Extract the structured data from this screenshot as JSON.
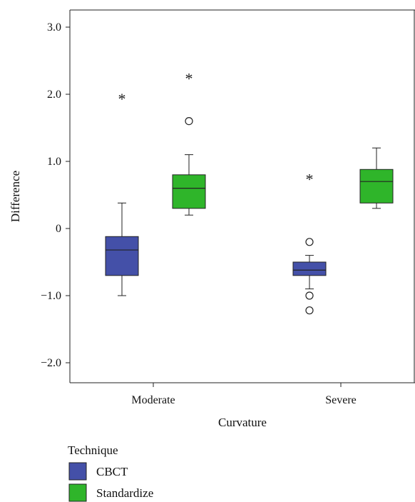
{
  "chart_data": {
    "type": "box",
    "xlabel": "Curvature",
    "ylabel": "Difference",
    "categories": [
      "Moderate",
      "Severe"
    ],
    "ylim": [
      -2.5,
      3.3
    ],
    "yticks": [
      {
        "value": 3.0,
        "label": "3.0"
      },
      {
        "value": 2.0,
        "label": "2.0"
      },
      {
        "value": 1.0,
        "label": "1.0"
      },
      {
        "value": 0,
        "label": "0"
      },
      {
        "value": -1.0,
        "label": "−1.0"
      },
      {
        "value": -2.0,
        "label": "−2.0"
      }
    ],
    "grid": false,
    "legend": {
      "title": "Technique",
      "placement": "bottom-left"
    },
    "series": [
      {
        "name": "CBCT",
        "color": "#4450a8",
        "boxes": [
          {
            "category": "Moderate",
            "whisker_low": -1.0,
            "q1": -0.7,
            "median": -0.32,
            "q3": -0.12,
            "whisker_high": 0.38,
            "outliers": [],
            "extremes": [
              1.97
            ]
          },
          {
            "category": "Severe",
            "whisker_low": -0.9,
            "q1": -0.7,
            "median": -0.62,
            "q3": -0.5,
            "whisker_high": -0.4,
            "outliers": [
              -0.2,
              -1.0,
              -1.22
            ],
            "extremes": [
              0.77
            ]
          }
        ]
      },
      {
        "name": "Standardize",
        "color": "#2fb52a",
        "boxes": [
          {
            "category": "Moderate",
            "whisker_low": 0.2,
            "q1": 0.3,
            "median": 0.6,
            "q3": 0.8,
            "whisker_high": 1.1,
            "outliers": [
              1.6
            ],
            "extremes": [
              2.27
            ]
          },
          {
            "category": "Severe",
            "whisker_low": 0.3,
            "q1": 0.38,
            "median": 0.7,
            "q3": 0.88,
            "whisker_high": 1.2,
            "outliers": [],
            "extremes": []
          }
        ]
      }
    ],
    "extreme_marker": "*"
  }
}
